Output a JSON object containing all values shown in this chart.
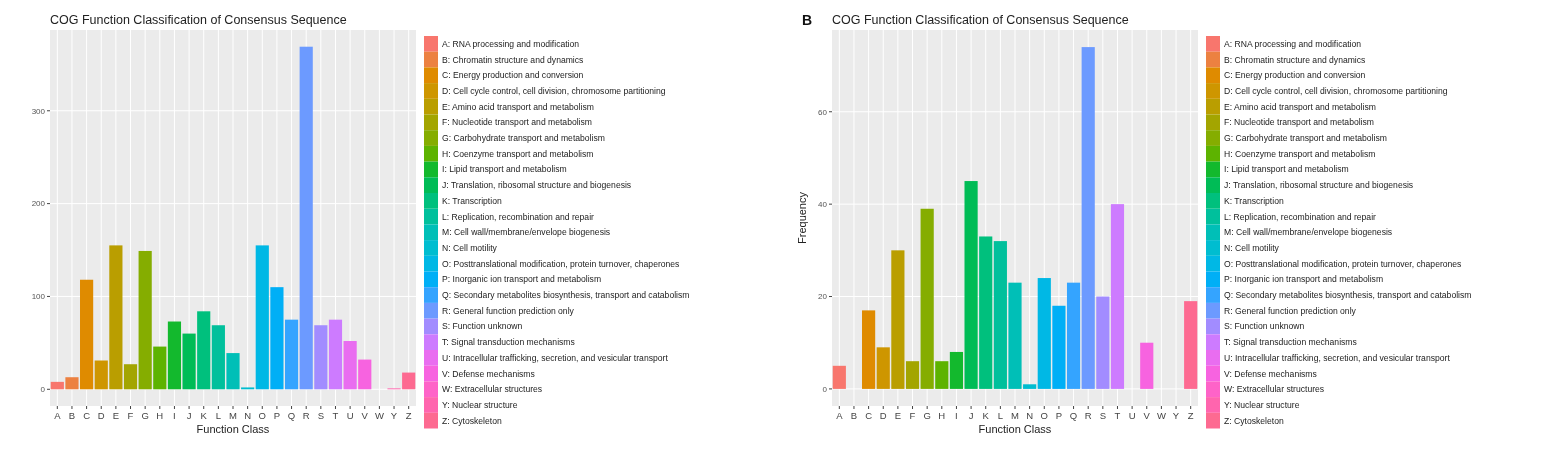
{
  "chart_data": [
    {
      "type": "bar",
      "title": "COG Function Classification of Consensus Sequence",
      "xlabel": "Function Class",
      "categories": [
        "A",
        "B",
        "C",
        "D",
        "E",
        "F",
        "G",
        "H",
        "I",
        "J",
        "K",
        "L",
        "M",
        "N",
        "O",
        "P",
        "Q",
        "R",
        "S",
        "T",
        "U",
        "V",
        "W",
        "Y",
        "Z"
      ],
      "ylim": [
        -18,
        387
      ],
      "yticks": [
        0,
        100,
        200,
        300
      ],
      "grid": true,
      "legend": "right",
      "series": [
        {
          "name": "A: RNA processing and modification",
          "color": "#f8766d",
          "values": [
            8,
            null,
            null,
            null,
            null,
            null,
            null,
            null,
            null,
            null,
            null,
            null,
            null,
            null,
            null,
            null,
            null,
            null,
            null,
            null,
            null,
            null,
            null,
            null,
            null
          ]
        },
        {
          "name": "B: Chromatin structure and dynamics",
          "color": "#ec8141",
          "values": [
            null,
            13,
            null,
            null,
            null,
            null,
            null,
            null,
            null,
            null,
            null,
            null,
            null,
            null,
            null,
            null,
            null,
            null,
            null,
            null,
            null,
            null,
            null,
            null,
            null
          ]
        },
        {
          "name": "C: Energy production and conversion",
          "color": "#df8b00",
          "values": [
            null,
            null,
            118,
            null,
            null,
            null,
            null,
            null,
            null,
            null,
            null,
            null,
            null,
            null,
            null,
            null,
            null,
            null,
            null,
            null,
            null,
            null,
            null,
            null,
            null
          ]
        },
        {
          "name": "D: Cell cycle control, cell division, chromosome partitioning",
          "color": "#ce9600",
          "values": [
            null,
            null,
            null,
            31,
            null,
            null,
            null,
            null,
            null,
            null,
            null,
            null,
            null,
            null,
            null,
            null,
            null,
            null,
            null,
            null,
            null,
            null,
            null,
            null,
            null
          ]
        },
        {
          "name": "E: Amino acid transport and metabolism",
          "color": "#ba9e00",
          "values": [
            null,
            null,
            null,
            null,
            155,
            null,
            null,
            null,
            null,
            null,
            null,
            null,
            null,
            null,
            null,
            null,
            null,
            null,
            null,
            null,
            null,
            null,
            null,
            null,
            null
          ]
        },
        {
          "name": "F: Nucleotide transport and metabolism",
          "color": "#a3a500",
          "values": [
            null,
            null,
            null,
            null,
            null,
            27,
            null,
            null,
            null,
            null,
            null,
            null,
            null,
            null,
            null,
            null,
            null,
            null,
            null,
            null,
            null,
            null,
            null,
            null,
            null
          ]
        },
        {
          "name": "G: Carbohydrate transport and metabolism",
          "color": "#85ad00",
          "values": [
            null,
            null,
            null,
            null,
            null,
            null,
            149,
            null,
            null,
            null,
            null,
            null,
            null,
            null,
            null,
            null,
            null,
            null,
            null,
            null,
            null,
            null,
            null,
            null,
            null
          ]
        },
        {
          "name": "H: Coenzyme transport and metabolism",
          "color": "#5db300",
          "values": [
            null,
            null,
            null,
            null,
            null,
            null,
            null,
            46,
            null,
            null,
            null,
            null,
            null,
            null,
            null,
            null,
            null,
            null,
            null,
            null,
            null,
            null,
            null,
            null,
            null
          ]
        },
        {
          "name": "I: Lipid transport and metabolism",
          "color": "#13b92d",
          "values": [
            null,
            null,
            null,
            null,
            null,
            null,
            null,
            null,
            73,
            null,
            null,
            null,
            null,
            null,
            null,
            null,
            null,
            null,
            null,
            null,
            null,
            null,
            null,
            null,
            null
          ]
        },
        {
          "name": "J: Translation, ribosomal structure and biogenesis",
          "color": "#00bc56",
          "values": [
            null,
            null,
            null,
            null,
            null,
            null,
            null,
            null,
            null,
            60,
            null,
            null,
            null,
            null,
            null,
            null,
            null,
            null,
            null,
            null,
            null,
            null,
            null,
            null,
            null
          ]
        },
        {
          "name": "K: Transcription",
          "color": "#00c07d",
          "values": [
            null,
            null,
            null,
            null,
            null,
            null,
            null,
            null,
            null,
            null,
            84,
            null,
            null,
            null,
            null,
            null,
            null,
            null,
            null,
            null,
            null,
            null,
            null,
            null,
            null
          ]
        },
        {
          "name": "L: Replication, recombination and repair",
          "color": "#00c09c",
          "values": [
            null,
            null,
            null,
            null,
            null,
            null,
            null,
            null,
            null,
            null,
            null,
            69,
            null,
            null,
            null,
            null,
            null,
            null,
            null,
            null,
            null,
            null,
            null,
            null,
            null
          ]
        },
        {
          "name": "M: Cell wall/membrane/envelope biogenesis",
          "color": "#00bfb7",
          "values": [
            null,
            null,
            null,
            null,
            null,
            null,
            null,
            null,
            null,
            null,
            null,
            null,
            39,
            null,
            null,
            null,
            null,
            null,
            null,
            null,
            null,
            null,
            null,
            null,
            null
          ]
        },
        {
          "name": "N: Cell motility",
          "color": "#00bdd0",
          "values": [
            null,
            null,
            null,
            null,
            null,
            null,
            null,
            null,
            null,
            null,
            null,
            null,
            null,
            2,
            null,
            null,
            null,
            null,
            null,
            null,
            null,
            null,
            null,
            null,
            null
          ]
        },
        {
          "name": "O: Posttranslational modification, protein turnover, chaperones",
          "color": "#00b8e5",
          "values": [
            null,
            null,
            null,
            null,
            null,
            null,
            null,
            null,
            null,
            null,
            null,
            null,
            null,
            null,
            155,
            null,
            null,
            null,
            null,
            null,
            null,
            null,
            null,
            null,
            null
          ]
        },
        {
          "name": "P: Inorganic ion transport and metabolism",
          "color": "#00aff6",
          "values": [
            null,
            null,
            null,
            null,
            null,
            null,
            null,
            null,
            null,
            null,
            null,
            null,
            null,
            null,
            null,
            110,
            null,
            null,
            null,
            null,
            null,
            null,
            null,
            null,
            null
          ]
        },
        {
          "name": "Q: Secondary metabolites biosynthesis, transport and catabolism",
          "color": "#34a4ff",
          "values": [
            null,
            null,
            null,
            null,
            null,
            null,
            null,
            null,
            null,
            null,
            null,
            null,
            null,
            null,
            null,
            null,
            75,
            null,
            null,
            null,
            null,
            null,
            null,
            null,
            null
          ]
        },
        {
          "name": "R: General function prediction only",
          "color": "#6c9aff",
          "values": [
            null,
            null,
            null,
            null,
            null,
            null,
            null,
            null,
            null,
            null,
            null,
            null,
            null,
            null,
            null,
            null,
            null,
            369,
            null,
            null,
            null,
            null,
            null,
            null,
            null
          ]
        },
        {
          "name": "S: Function unknown",
          "color": "#a28cff",
          "values": [
            null,
            null,
            null,
            null,
            null,
            null,
            null,
            null,
            null,
            null,
            null,
            null,
            null,
            null,
            null,
            null,
            null,
            null,
            69,
            null,
            null,
            null,
            null,
            null,
            null
          ]
        },
        {
          "name": "T: Signal transduction mechanisms",
          "color": "#cd7bff",
          "values": [
            null,
            null,
            null,
            null,
            null,
            null,
            null,
            null,
            null,
            null,
            null,
            null,
            null,
            null,
            null,
            null,
            null,
            null,
            null,
            75,
            null,
            null,
            null,
            null,
            null
          ]
        },
        {
          "name": "U: Intracellular trafficking, secretion, and vesicular transport",
          "color": "#e96df0",
          "values": [
            null,
            null,
            null,
            null,
            null,
            null,
            null,
            null,
            null,
            null,
            null,
            null,
            null,
            null,
            null,
            null,
            null,
            null,
            null,
            null,
            52,
            null,
            null,
            null,
            null
          ]
        },
        {
          "name": "V: Defense mechanisms",
          "color": "#f763e0",
          "values": [
            null,
            null,
            null,
            null,
            null,
            null,
            null,
            null,
            null,
            null,
            null,
            null,
            null,
            null,
            null,
            null,
            null,
            null,
            null,
            null,
            null,
            32,
            null,
            null,
            null
          ]
        },
        {
          "name": "W: Extracellular structures",
          "color": "#fe63c8",
          "values": [
            null,
            null,
            null,
            null,
            null,
            null,
            null,
            null,
            null,
            null,
            null,
            null,
            null,
            null,
            null,
            null,
            null,
            null,
            null,
            null,
            null,
            null,
            0,
            null,
            null
          ]
        },
        {
          "name": "Y: Nuclear structure",
          "color": "#ff65ae",
          "values": [
            null,
            null,
            null,
            null,
            null,
            null,
            null,
            null,
            null,
            null,
            null,
            null,
            null,
            null,
            null,
            null,
            null,
            null,
            null,
            null,
            null,
            null,
            null,
            1,
            null
          ]
        },
        {
          "name": "Z: Cytoskeleton",
          "color": "#fd6a91",
          "values": [
            null,
            null,
            null,
            null,
            null,
            null,
            null,
            null,
            null,
            null,
            null,
            null,
            null,
            null,
            null,
            null,
            null,
            null,
            null,
            null,
            null,
            null,
            null,
            null,
            18
          ]
        }
      ]
    },
    {
      "type": "bar",
      "title": "COG Function Classification of Consensus Sequence",
      "xlabel": "Function Class",
      "ylabel": "Frequency",
      "annotations": [
        "B"
      ],
      "categories": [
        "A",
        "B",
        "C",
        "D",
        "E",
        "F",
        "G",
        "H",
        "I",
        "J",
        "K",
        "L",
        "M",
        "N",
        "O",
        "P",
        "Q",
        "R",
        "S",
        "T",
        "U",
        "V",
        "W",
        "Y",
        "Z"
      ],
      "ylim": [
        -3.7,
        77.7
      ],
      "yticks": [
        0,
        20,
        40,
        60
      ],
      "grid": true,
      "legend": "right",
      "series": [
        {
          "name": "A: RNA processing and modification",
          "color": "#f8766d",
          "values": [
            5,
            null,
            null,
            null,
            null,
            null,
            null,
            null,
            null,
            null,
            null,
            null,
            null,
            null,
            null,
            null,
            null,
            null,
            null,
            null,
            null,
            null,
            null,
            null,
            null
          ]
        },
        {
          "name": "B: Chromatin structure and dynamics",
          "color": "#ec8141",
          "values": [
            null,
            0,
            null,
            null,
            null,
            null,
            null,
            null,
            null,
            null,
            null,
            null,
            null,
            null,
            null,
            null,
            null,
            null,
            null,
            null,
            null,
            null,
            null,
            null,
            null
          ]
        },
        {
          "name": "C: Energy production and conversion",
          "color": "#df8b00",
          "values": [
            null,
            null,
            17,
            null,
            null,
            null,
            null,
            null,
            null,
            null,
            null,
            null,
            null,
            null,
            null,
            null,
            null,
            null,
            null,
            null,
            null,
            null,
            null,
            null,
            null
          ]
        },
        {
          "name": "D: Cell cycle control, cell division, chromosome partitioning",
          "color": "#ce9600",
          "values": [
            null,
            null,
            null,
            9,
            null,
            null,
            null,
            null,
            null,
            null,
            null,
            null,
            null,
            null,
            null,
            null,
            null,
            null,
            null,
            null,
            null,
            null,
            null,
            null,
            null
          ]
        },
        {
          "name": "E: Amino acid transport and metabolism",
          "color": "#ba9e00",
          "values": [
            null,
            null,
            null,
            null,
            30,
            null,
            null,
            null,
            null,
            null,
            null,
            null,
            null,
            null,
            null,
            null,
            null,
            null,
            null,
            null,
            null,
            null,
            null,
            null,
            null
          ]
        },
        {
          "name": "F: Nucleotide transport and metabolism",
          "color": "#a3a500",
          "values": [
            null,
            null,
            null,
            null,
            null,
            6,
            null,
            null,
            null,
            null,
            null,
            null,
            null,
            null,
            null,
            null,
            null,
            null,
            null,
            null,
            null,
            null,
            null,
            null,
            null
          ]
        },
        {
          "name": "G: Carbohydrate transport and metabolism",
          "color": "#85ad00",
          "values": [
            null,
            null,
            null,
            null,
            null,
            null,
            39,
            null,
            null,
            null,
            null,
            null,
            null,
            null,
            null,
            null,
            null,
            null,
            null,
            null,
            null,
            null,
            null,
            null,
            null
          ]
        },
        {
          "name": "H: Coenzyme transport and metabolism",
          "color": "#5db300",
          "values": [
            null,
            null,
            null,
            null,
            null,
            null,
            null,
            6,
            null,
            null,
            null,
            null,
            null,
            null,
            null,
            null,
            null,
            null,
            null,
            null,
            null,
            null,
            null,
            null,
            null
          ]
        },
        {
          "name": "I: Lipid transport and metabolism",
          "color": "#13b92d",
          "values": [
            null,
            null,
            null,
            null,
            null,
            null,
            null,
            null,
            8,
            null,
            null,
            null,
            null,
            null,
            null,
            null,
            null,
            null,
            null,
            null,
            null,
            null,
            null,
            null,
            null
          ]
        },
        {
          "name": "J: Translation, ribosomal structure and biogenesis",
          "color": "#00bc56",
          "values": [
            null,
            null,
            null,
            null,
            null,
            null,
            null,
            null,
            null,
            45,
            null,
            null,
            null,
            null,
            null,
            null,
            null,
            null,
            null,
            null,
            null,
            null,
            null,
            null,
            null
          ]
        },
        {
          "name": "K: Transcription",
          "color": "#00c07d",
          "values": [
            null,
            null,
            null,
            null,
            null,
            null,
            null,
            null,
            null,
            null,
            33,
            null,
            null,
            null,
            null,
            null,
            null,
            null,
            null,
            null,
            null,
            null,
            null,
            null,
            null
          ]
        },
        {
          "name": "L: Replication, recombination and repair",
          "color": "#00c09c",
          "values": [
            null,
            null,
            null,
            null,
            null,
            null,
            null,
            null,
            null,
            null,
            null,
            32,
            null,
            null,
            null,
            null,
            null,
            null,
            null,
            null,
            null,
            null,
            null,
            null,
            null
          ]
        },
        {
          "name": "M: Cell wall/membrane/envelope biogenesis",
          "color": "#00bfb7",
          "values": [
            null,
            null,
            null,
            null,
            null,
            null,
            null,
            null,
            null,
            null,
            null,
            null,
            23,
            null,
            null,
            null,
            null,
            null,
            null,
            null,
            null,
            null,
            null,
            null,
            null
          ]
        },
        {
          "name": "N: Cell motility",
          "color": "#00bdd0",
          "values": [
            null,
            null,
            null,
            null,
            null,
            null,
            null,
            null,
            null,
            null,
            null,
            null,
            null,
            1,
            null,
            null,
            null,
            null,
            null,
            null,
            null,
            null,
            null,
            null,
            null
          ]
        },
        {
          "name": "O: Posttranslational modification, protein turnover, chaperones",
          "color": "#00b8e5",
          "values": [
            null,
            null,
            null,
            null,
            null,
            null,
            null,
            null,
            null,
            null,
            null,
            null,
            null,
            null,
            24,
            null,
            null,
            null,
            null,
            null,
            null,
            null,
            null,
            null,
            null
          ]
        },
        {
          "name": "P: Inorganic ion transport and metabolism",
          "color": "#00aff6",
          "values": [
            null,
            null,
            null,
            null,
            null,
            null,
            null,
            null,
            null,
            null,
            null,
            null,
            null,
            null,
            null,
            18,
            null,
            null,
            null,
            null,
            null,
            null,
            null,
            null,
            null
          ]
        },
        {
          "name": "Q: Secondary metabolites biosynthesis, transport and catabolism",
          "color": "#34a4ff",
          "values": [
            null,
            null,
            null,
            null,
            null,
            null,
            null,
            null,
            null,
            null,
            null,
            null,
            null,
            null,
            null,
            null,
            23,
            null,
            null,
            null,
            null,
            null,
            null,
            null,
            null
          ]
        },
        {
          "name": "R: General function prediction only",
          "color": "#6c9aff",
          "values": [
            null,
            null,
            null,
            null,
            null,
            null,
            null,
            null,
            null,
            null,
            null,
            null,
            null,
            null,
            null,
            null,
            null,
            74,
            null,
            null,
            null,
            null,
            null,
            null,
            null
          ]
        },
        {
          "name": "S: Function unknown",
          "color": "#a28cff",
          "values": [
            null,
            null,
            null,
            null,
            null,
            null,
            null,
            null,
            null,
            null,
            null,
            null,
            null,
            null,
            null,
            null,
            null,
            null,
            20,
            null,
            null,
            null,
            null,
            null,
            null
          ]
        },
        {
          "name": "T: Signal transduction mechanisms",
          "color": "#cd7bff",
          "values": [
            null,
            null,
            null,
            null,
            null,
            null,
            null,
            null,
            null,
            null,
            null,
            null,
            null,
            null,
            null,
            null,
            null,
            null,
            null,
            40,
            null,
            null,
            null,
            null,
            null
          ]
        },
        {
          "name": "U: Intracellular trafficking, secretion, and vesicular transport",
          "color": "#e96df0",
          "values": [
            null,
            null,
            null,
            null,
            null,
            null,
            null,
            null,
            null,
            null,
            null,
            null,
            null,
            null,
            null,
            null,
            null,
            null,
            null,
            null,
            0,
            null,
            null,
            null,
            null
          ]
        },
        {
          "name": "V: Defense mechanisms",
          "color": "#f763e0",
          "values": [
            null,
            null,
            null,
            null,
            null,
            null,
            null,
            null,
            null,
            null,
            null,
            null,
            null,
            null,
            null,
            null,
            null,
            null,
            null,
            null,
            null,
            10,
            null,
            null,
            null
          ]
        },
        {
          "name": "W: Extracellular structures",
          "color": "#fe63c8",
          "values": [
            null,
            null,
            null,
            null,
            null,
            null,
            null,
            null,
            null,
            null,
            null,
            null,
            null,
            null,
            null,
            null,
            null,
            null,
            null,
            null,
            null,
            null,
            0,
            null,
            null
          ]
        },
        {
          "name": "Y: Nuclear structure",
          "color": "#ff65ae",
          "values": [
            null,
            null,
            null,
            null,
            null,
            null,
            null,
            null,
            null,
            null,
            null,
            null,
            null,
            null,
            null,
            null,
            null,
            null,
            null,
            null,
            null,
            null,
            null,
            0,
            null
          ]
        },
        {
          "name": "Z: Cytoskeleton",
          "color": "#fd6a91",
          "values": [
            null,
            null,
            null,
            null,
            null,
            null,
            null,
            null,
            null,
            null,
            null,
            null,
            null,
            null,
            null,
            null,
            null,
            null,
            null,
            null,
            null,
            null,
            null,
            null,
            19
          ]
        }
      ]
    }
  ]
}
